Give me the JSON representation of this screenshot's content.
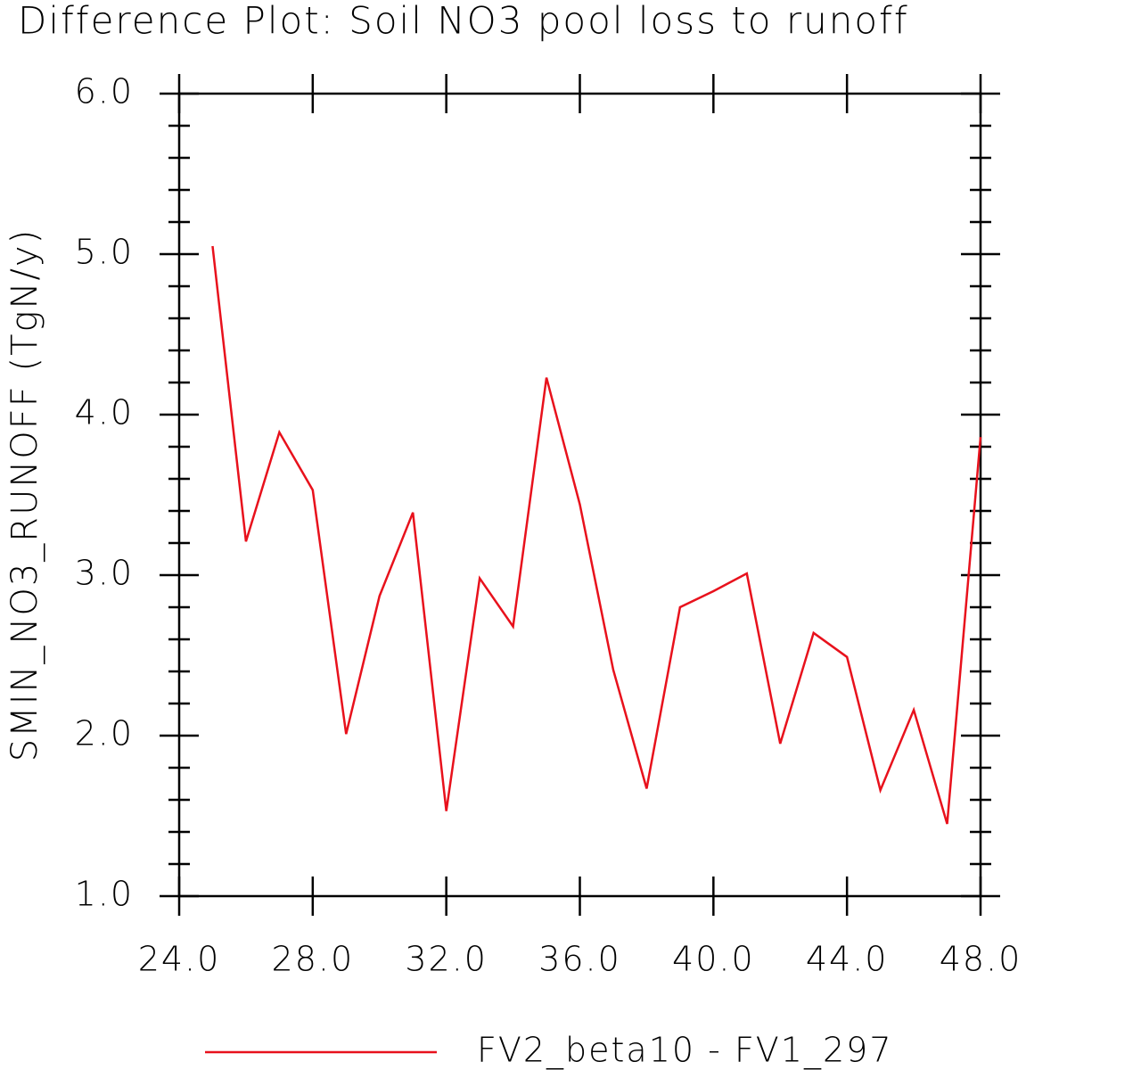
{
  "chart_data": {
    "type": "line",
    "title": "Difference Plot: Soil NO3 pool loss to runoff",
    "y_label": "SMIN_NO3_RUNOFF  (TgN/y)",
    "x": [
      25,
      26,
      27,
      28,
      29,
      30,
      31,
      32,
      33,
      34,
      35,
      36,
      37,
      38,
      39,
      40,
      41,
      42,
      43,
      44,
      45,
      46,
      47,
      48
    ],
    "series": [
      {
        "name": "FV2_beta10 - FV1_297",
        "color": "#e8111c",
        "values": [
          5.05,
          3.21,
          3.89,
          3.53,
          2.01,
          2.87,
          3.39,
          1.53,
          2.98,
          2.68,
          4.23,
          3.44,
          2.41,
          1.67,
          2.8,
          2.9,
          3.01,
          1.95,
          2.64,
          2.49,
          1.66,
          2.16,
          1.45,
          3.86
        ]
      }
    ],
    "xlim": [
      24,
      48
    ],
    "xticks": [
      {
        "value": 24,
        "label": "24.0"
      },
      {
        "value": 28,
        "label": "28.0"
      },
      {
        "value": 32,
        "label": "32.0"
      },
      {
        "value": 36,
        "label": "36.0"
      },
      {
        "value": 40,
        "label": "40.0"
      },
      {
        "value": 44,
        "label": "44.0"
      },
      {
        "value": 48,
        "label": "48.0"
      }
    ],
    "ylim": [
      1,
      6
    ],
    "yticks": [
      {
        "value": 1,
        "label": "1.0"
      },
      {
        "value": 2,
        "label": "2.0"
      },
      {
        "value": 3,
        "label": "3.0"
      },
      {
        "value": 4,
        "label": "4.0"
      },
      {
        "value": 5,
        "label": "5.0"
      },
      {
        "value": 6,
        "label": "6.0"
      }
    ],
    "yminor_ticks": [
      1.2,
      1.4,
      1.6,
      1.8,
      2.2,
      2.4,
      2.6,
      2.8,
      3.2,
      3.4,
      3.6,
      3.8,
      4.2,
      4.4,
      4.6,
      4.8,
      5.2,
      5.4,
      5.6,
      5.8
    ]
  }
}
